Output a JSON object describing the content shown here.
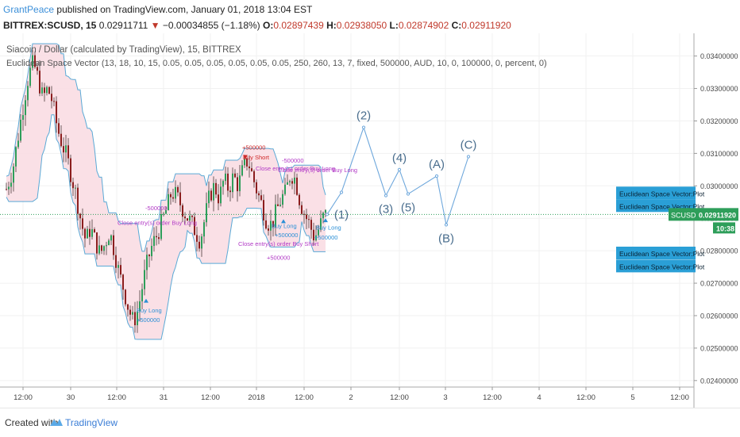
{
  "header": {
    "author": "GrantPeace",
    "published": "published on TradingView.com, January 01, 2018 13:04 EST",
    "symbol": "BITTREX:SCUSD, 15",
    "last": "0.02911711",
    "change": "−0.00034855 (−1.18%)",
    "o_label": "O:",
    "o": "0.02897439",
    "h_label": "H:",
    "h": "0.02938050",
    "l_label": "L:",
    "l": "0.02874902",
    "c_label": "C:",
    "c": "0.02911920"
  },
  "legend": {
    "title": "Siacoin / Dollar (calculated by TradingView), 15, BITTREX",
    "indicator": "Euclidean Space Vector (13, 18, 10, 15, 0.05, 0.05, 0.05, 0.05, 0.05, 0.05, 250, 260, 13, 7, fixed, 500000, AUD, 10, 0, 100000, 0, percent, 0)"
  },
  "footer": {
    "created": "Created with",
    "brand": "TradingView"
  },
  "colors": {
    "up": "#2e9e5a",
    "down": "#8b1e1e",
    "band": "#f9dde3",
    "line": "#5aa9d6",
    "wave": "#6fa8dc",
    "badge": "#2a9fd6",
    "magenta": "#b23ac6",
    "buy": "#2a8fd6",
    "sell": "#d02828"
  },
  "chart_data": {
    "type": "candlestick",
    "ylim": [
      0.0238,
      0.0347
    ],
    "price_ticks": [
      0.034,
      0.033,
      0.032,
      0.031,
      0.03,
      0.029,
      0.028,
      0.027,
      0.026,
      0.025,
      0.024
    ],
    "price_tick_labels": [
      "0.03400000",
      "0.03300000",
      "0.03200000",
      "0.03100000",
      "0.03000000",
      "0.02900000",
      "0.02800000",
      "0.02700000",
      "0.02600000",
      "0.02500000",
      "0.02400000"
    ],
    "time_ticks": [
      {
        "label": "12:00",
        "x": 29
      },
      {
        "label": "30",
        "x": 89
      },
      {
        "label": "12:00",
        "x": 147
      },
      {
        "label": "31",
        "x": 206
      },
      {
        "label": "12:00",
        "x": 265
      },
      {
        "label": "2018",
        "x": 323
      },
      {
        "label": "12:00",
        "x": 383
      },
      {
        "label": "2",
        "x": 442
      },
      {
        "label": "12:00",
        "x": 503
      },
      {
        "label": "3",
        "x": 561
      },
      {
        "label": "12:00",
        "x": 620
      },
      {
        "label": "4",
        "x": 679
      },
      {
        "label": "12:00",
        "x": 738
      },
      {
        "label": "5",
        "x": 797
      },
      {
        "label": "12:00",
        "x": 856
      }
    ],
    "current_price": 0.0291192,
    "current_price_label": "0.02911920",
    "symbol_badge": "SCUSD",
    "countdown": "10:38",
    "candle_path": [
      [
        8,
        0.0299
      ],
      [
        16,
        0.0305
      ],
      [
        24,
        0.0317
      ],
      [
        30,
        0.0326
      ],
      [
        36,
        0.0334
      ],
      [
        42,
        0.0338
      ],
      [
        48,
        0.0333
      ],
      [
        54,
        0.0327
      ],
      [
        60,
        0.033
      ],
      [
        66,
        0.0326
      ],
      [
        72,
        0.0318
      ],
      [
        78,
        0.0313
      ],
      [
        84,
        0.0309
      ],
      [
        90,
        0.0303
      ],
      [
        96,
        0.0297
      ],
      [
        102,
        0.0289
      ],
      [
        108,
        0.0283
      ],
      [
        114,
        0.0287
      ],
      [
        120,
        0.0283
      ],
      [
        126,
        0.0279
      ],
      [
        132,
        0.0282
      ],
      [
        138,
        0.0286
      ],
      [
        144,
        0.028
      ],
      [
        150,
        0.0273
      ],
      [
        156,
        0.0268
      ],
      [
        162,
        0.0262
      ],
      [
        168,
        0.0258
      ],
      [
        174,
        0.0262
      ],
      [
        180,
        0.027
      ],
      [
        186,
        0.0277
      ],
      [
        192,
        0.0282
      ],
      [
        198,
        0.0285
      ],
      [
        204,
        0.0289
      ],
      [
        210,
        0.0293
      ],
      [
        216,
        0.0298
      ],
      [
        222,
        0.0297
      ],
      [
        228,
        0.0294
      ],
      [
        234,
        0.0291
      ],
      [
        240,
        0.0289
      ],
      [
        246,
        0.0286
      ],
      [
        252,
        0.0283
      ],
      [
        258,
        0.029
      ],
      [
        264,
        0.0297
      ],
      [
        270,
        0.03
      ],
      [
        276,
        0.0296
      ],
      [
        282,
        0.0302
      ],
      [
        288,
        0.0299
      ],
      [
        294,
        0.0303
      ],
      [
        300,
        0.03
      ],
      [
        306,
        0.0305
      ],
      [
        312,
        0.0308
      ],
      [
        318,
        0.0303
      ],
      [
        324,
        0.0298
      ],
      [
        330,
        0.0294
      ],
      [
        336,
        0.0289
      ],
      [
        342,
        0.0288
      ],
      [
        348,
        0.0292
      ],
      [
        354,
        0.0296
      ],
      [
        360,
        0.0298
      ],
      [
        366,
        0.0304
      ],
      [
        372,
        0.0302
      ],
      [
        378,
        0.0295
      ],
      [
        384,
        0.0291
      ],
      [
        390,
        0.0288
      ],
      [
        396,
        0.0284
      ],
      [
        402,
        0.0287
      ],
      [
        408,
        0.0291
      ],
      [
        412,
        0.0291
      ]
    ],
    "wave_projection": [
      {
        "x": 412,
        "y": 0.02912,
        "label": "(1)"
      },
      {
        "x": 430,
        "y": 0.0298,
        "label": ""
      },
      {
        "x": 458,
        "y": 0.0318,
        "label": "(2)"
      },
      {
        "x": 486,
        "y": 0.0297,
        "label": "(3)"
      },
      {
        "x": 503,
        "y": 0.0305,
        "label": "(4)"
      },
      {
        "x": 514,
        "y": 0.02975,
        "label": "(5)"
      },
      {
        "x": 550,
        "y": 0.0303,
        "label": "(A)"
      },
      {
        "x": 562,
        "y": 0.0288,
        "label": "(B)"
      },
      {
        "x": 590,
        "y": 0.0309,
        "label": "(C)"
      }
    ],
    "plot_badges": [
      {
        "label": "Euclidean Space Vector:Plot",
        "y": 0.02978
      },
      {
        "label": "Euclidean Space Vector:Plot",
        "y": 0.02939
      },
      {
        "label": "Euclidean Space Vector:Plot",
        "y": 0.02793
      },
      {
        "label": "Euclidean Space Vector:Plot",
        "y": 0.02753
      }
    ],
    "annotations": [
      {
        "text": "+500000",
        "x": 305,
        "y": 0.03112,
        "color": "#d02828"
      },
      {
        "text": "Buy Short",
        "x": 306,
        "y": 0.03082,
        "color": "#d02828"
      },
      {
        "text": "Close entry(s) order Buy Long",
        "x": 322,
        "y": 0.03047,
        "color": "#b23ac6"
      },
      {
        "text": "-500000",
        "x": 355,
        "y": 0.03072,
        "color": "#b23ac6"
      },
      {
        "text": "Close entry(s) order Buy Long",
        "x": 350,
        "y": 0.03042,
        "color": "#b23ac6"
      },
      {
        "text": "-500000",
        "x": 183,
        "y": 0.02925,
        "color": "#b23ac6"
      },
      {
        "text": "Close entry(s) order Buy Long",
        "x": 148,
        "y": 0.0288,
        "color": "#b23ac6"
      },
      {
        "text": "Buy Long",
        "x": 342,
        "y": 0.0287,
        "color": "#2a8fd6"
      },
      {
        "text": "+500000",
        "x": 346,
        "y": 0.02842,
        "color": "#2a8fd6"
      },
      {
        "text": "Buy Long",
        "x": 398,
        "y": 0.02865,
        "color": "#2a8fd6"
      },
      {
        "text": "+500000",
        "x": 396,
        "y": 0.02835,
        "color": "#2a8fd6"
      },
      {
        "text": "Close entry(s) order Buy Short",
        "x": 300,
        "y": 0.02815,
        "color": "#b23ac6"
      },
      {
        "text": "+500000",
        "x": 336,
        "y": 0.02772,
        "color": "#b23ac6"
      },
      {
        "text": "Buy Long",
        "x": 172,
        "y": 0.0261,
        "color": "#2a8fd6"
      },
      {
        "text": "+500000",
        "x": 172,
        "y": 0.0258,
        "color": "#2a8fd6"
      }
    ]
  }
}
